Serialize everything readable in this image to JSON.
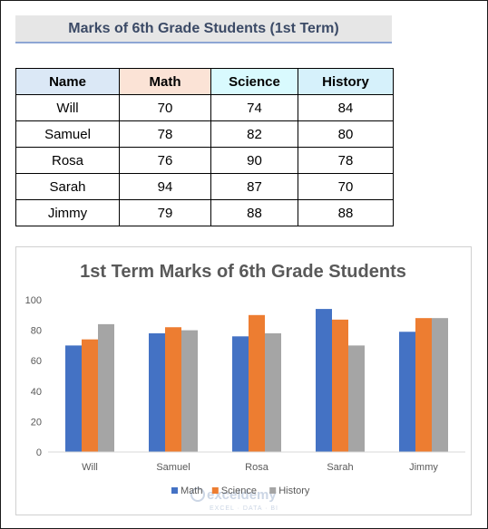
{
  "header": {
    "title": "Marks of 6th Grade Students (1st Term)"
  },
  "table": {
    "columns": [
      "Name",
      "Math",
      "Science",
      "History"
    ],
    "rows": [
      [
        "Will",
        "70",
        "74",
        "84"
      ],
      [
        "Samuel",
        "78",
        "82",
        "80"
      ],
      [
        "Rosa",
        "76",
        "90",
        "78"
      ],
      [
        "Sarah",
        "94",
        "87",
        "70"
      ],
      [
        "Jimmy",
        "79",
        "88",
        "88"
      ]
    ]
  },
  "chart_data": {
    "type": "bar",
    "title": "1st Term Marks of 6th Grade Students",
    "categories": [
      "Will",
      "Samuel",
      "Rosa",
      "Sarah",
      "Jimmy"
    ],
    "series": [
      {
        "name": "Math",
        "values": [
          70,
          78,
          76,
          94,
          79
        ],
        "color": "#4472c4"
      },
      {
        "name": "Science",
        "values": [
          74,
          82,
          90,
          87,
          88
        ],
        "color": "#ed7d31"
      },
      {
        "name": "History",
        "values": [
          84,
          80,
          78,
          70,
          88
        ],
        "color": "#a5a5a5"
      }
    ],
    "yticks": [
      "0",
      "20",
      "40",
      "60",
      "80",
      "100"
    ],
    "ylim": [
      0,
      100
    ],
    "grid": false,
    "legend_position": "bottom",
    "xlabel": "",
    "ylabel": ""
  },
  "watermark": {
    "brand": "exceldemy",
    "tagline": "EXCEL · DATA · BI"
  }
}
